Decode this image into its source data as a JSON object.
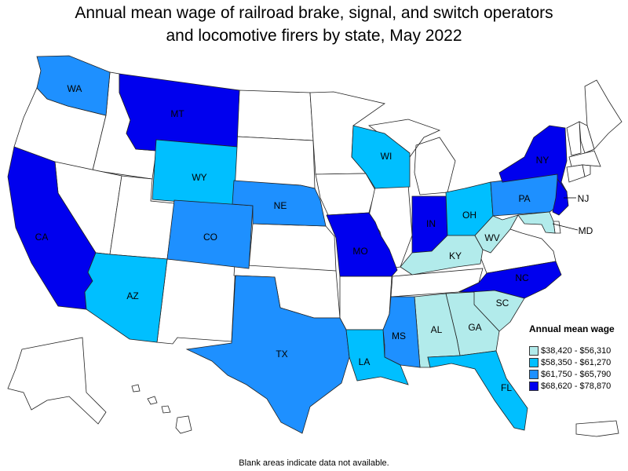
{
  "title_line1": "Annual mean wage of railroad brake, signal, and switch operators",
  "title_line2": "and locomotive firers by state, May 2022",
  "legend": {
    "title": "Annual mean wage",
    "bins": [
      {
        "label": "$38,420 - $56,310",
        "color": "#b2ebeb"
      },
      {
        "label": "$58,350 - $61,270",
        "color": "#00bfff"
      },
      {
        "label": "$61,750 - $65,790",
        "color": "#1e90ff"
      },
      {
        "label": "$68,620 - $78,870",
        "color": "#0000ee"
      }
    ]
  },
  "no_data_color": "#ffffff",
  "state_bins": {
    "WA": 2,
    "MT": 3,
    "CA": 3,
    "WY": 1,
    "CO": 2,
    "AZ": 1,
    "NE": 2,
    "TX": 2,
    "MO": 3,
    "WI": 1,
    "IN": 3,
    "OH": 1,
    "KY": 0,
    "WV": 0,
    "PA": 2,
    "NY": 3,
    "NJ": 3,
    "MD": 0,
    "NC": 3,
    "SC": 0,
    "GA": 0,
    "AL": 0,
    "MS": 2,
    "LA": 1,
    "FL": 1
  },
  "labels": {
    "WA": "WA",
    "MT": "MT",
    "CA": "CA",
    "WY": "WY",
    "CO": "CO",
    "AZ": "AZ",
    "NE": "NE",
    "TX": "TX",
    "MO": "MO",
    "WI": "WI",
    "IN": "IN",
    "OH": "OH",
    "KY": "KY",
    "WV": "WV",
    "PA": "PA",
    "NY": "NY",
    "NJ": "NJ",
    "MD": "MD",
    "NC": "NC",
    "SC": "SC",
    "GA": "GA",
    "AL": "AL",
    "MS": "MS",
    "LA": "LA",
    "FL": "FL"
  },
  "note": "Blank areas indicate data not available."
}
